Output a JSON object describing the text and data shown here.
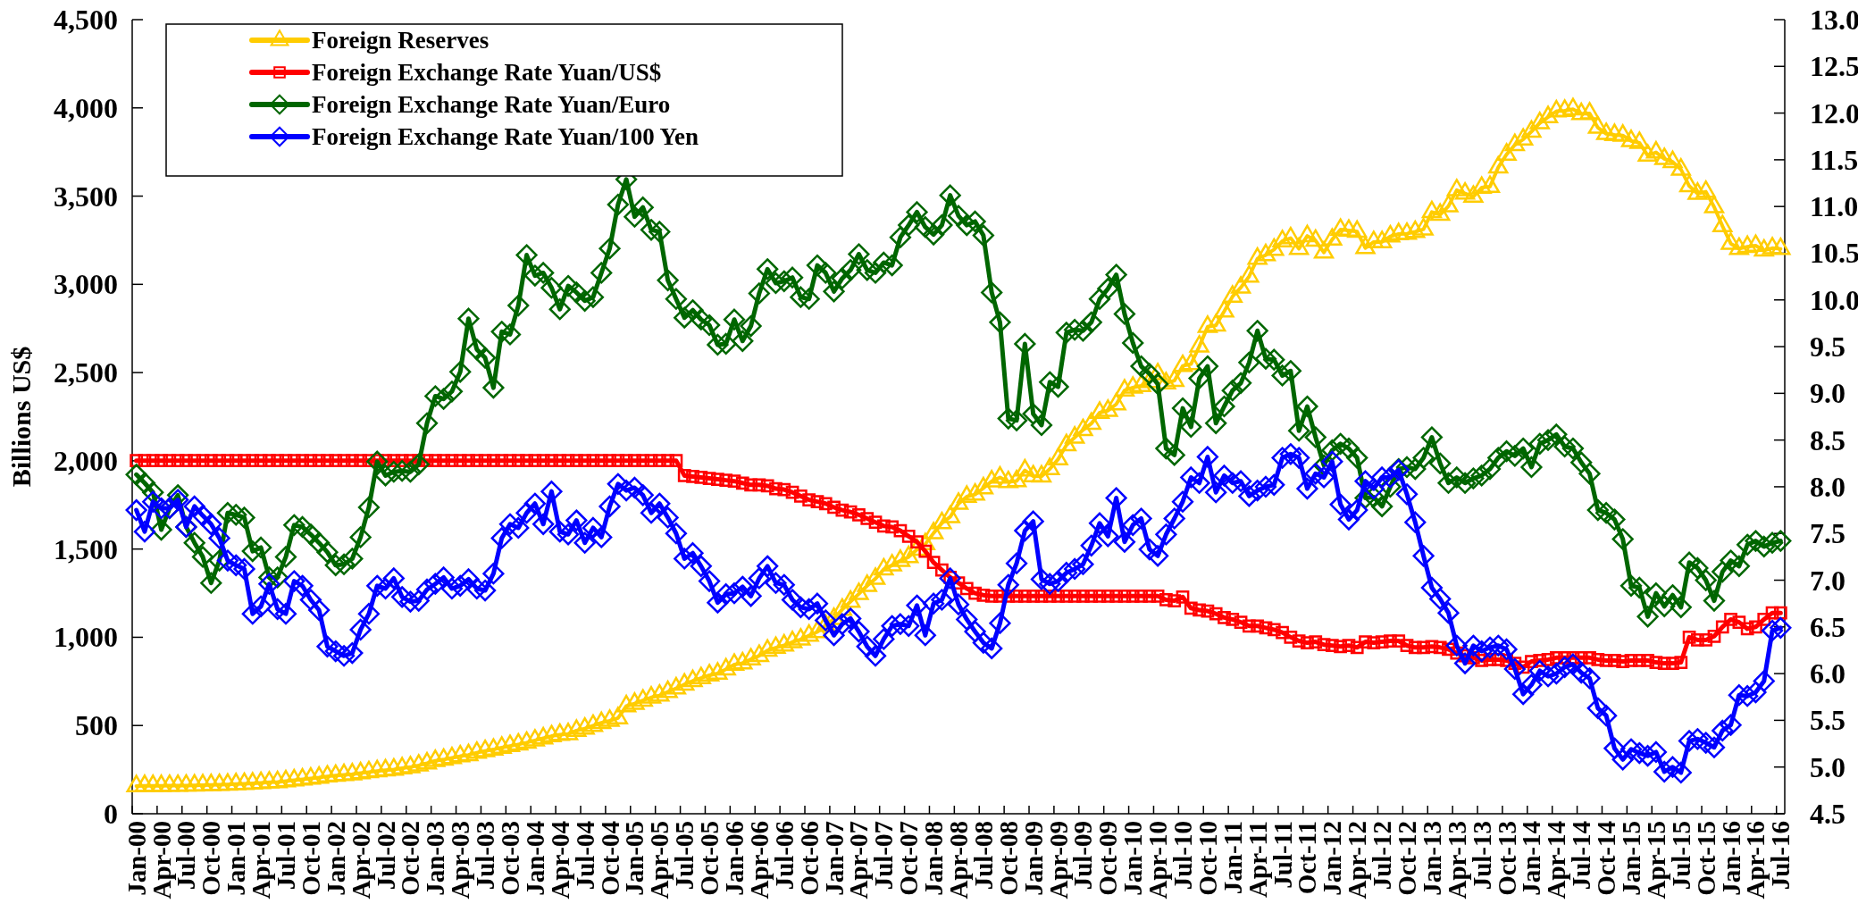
{
  "chart_data": {
    "type": "line",
    "ylabel": "Billions US$",
    "categories": [
      "Jan-00",
      null,
      null,
      "Apr-00",
      null,
      null,
      "Jul-00",
      null,
      null,
      "Oct-00",
      null,
      null,
      "Jan-01",
      null,
      null,
      "Apr-01",
      null,
      null,
      "Jul-01",
      null,
      null,
      "Oct-01",
      null,
      null,
      "Jan-02",
      null,
      null,
      "Apr-02",
      null,
      null,
      "Jul-02",
      null,
      null,
      "Oct-02",
      null,
      null,
      "Jan-03",
      null,
      null,
      "Apr-03",
      null,
      null,
      "Jul-03",
      null,
      null,
      "Oct-03",
      null,
      null,
      "Jan-04",
      null,
      null,
      "Apr-04",
      null,
      null,
      "Jul-04",
      null,
      null,
      "Oct-04",
      null,
      null,
      "Jan-05",
      null,
      null,
      "Apr-05",
      null,
      null,
      "Jul-05",
      null,
      null,
      "Oct-05",
      null,
      null,
      "Jan-06",
      null,
      null,
      "Apr-06",
      null,
      null,
      "Jul-06",
      null,
      null,
      "Oct-06",
      null,
      null,
      "Jan-07",
      null,
      null,
      "Apr-07",
      null,
      null,
      "Jul-07",
      null,
      null,
      "Oct-07",
      null,
      null,
      "Jan-08",
      null,
      null,
      "Apr-08",
      null,
      null,
      "Jul-08",
      null,
      null,
      "Oct-08",
      null,
      null,
      "Jan-09",
      null,
      null,
      "Apr-09",
      null,
      null,
      "Jul-09",
      null,
      null,
      "Oct-09",
      null,
      null,
      "Jan-10",
      null,
      null,
      "Apr-10",
      null,
      null,
      "Jul-10",
      null,
      null,
      "Oct-10",
      null,
      null,
      "Jan-11",
      null,
      null,
      "Apr-11",
      null,
      null,
      "Jul-11",
      null,
      null,
      "Oct-11",
      null,
      null,
      "Jan-12",
      null,
      null,
      "Apr-12",
      null,
      null,
      "Jul-12",
      null,
      null,
      "Oct-12",
      null,
      null,
      "Jan-13",
      null,
      null,
      "Apr-13",
      null,
      null,
      "Jul-13",
      null,
      null,
      "Oct-13",
      null,
      null,
      "Jan-14",
      null,
      null,
      "Apr-14",
      null,
      null,
      "Jul-14",
      null,
      null,
      "Oct-14",
      null,
      null,
      "Jan-15",
      null,
      null,
      "Apr-15",
      null,
      null,
      "Jul-15",
      null,
      null,
      "Oct-15",
      null,
      null,
      "Jan-16",
      null,
      null,
      "Apr-16",
      null,
      null,
      "Jul-16"
    ],
    "series": [
      {
        "name": "Foreign Reserves",
        "color": "#ffcc00",
        "marker": "triangle",
        "values": [
          157,
          158,
          158,
          158,
          159,
          159,
          160,
          161,
          162,
          163,
          164,
          166,
          168,
          170,
          172,
          175,
          178,
          180,
          185,
          190,
          195,
          200,
          205,
          212,
          216,
          220,
          224,
          230,
          236,
          242,
          247,
          251,
          258,
          264,
          274,
          286,
          300,
          307,
          316,
          326,
          333,
          346,
          356,
          364,
          375,
          384,
          393,
          403,
          416,
          428,
          440,
          448,
          452,
          471,
          483,
          499,
          515,
          527,
          542,
          610,
          624,
          642,
          659,
          670,
          691,
          711,
          733,
          753,
          769,
          785,
          795,
          819,
          845,
          853,
          875,
          895,
          925,
          941,
          954,
          973,
          988,
          1010,
          1030,
          1066,
          1105,
          1157,
          1202,
          1246,
          1292,
          1332,
          1385,
          1408,
          1434,
          1455,
          1497,
          1528,
          1590,
          1647,
          1682,
          1757,
          1797,
          1809,
          1845,
          1884,
          1906,
          1880,
          1885,
          1946,
          1913,
          1912,
          1954,
          2009,
          2089,
          2132,
          2175,
          2211,
          2273,
          2284,
          2321,
          2399,
          2415,
          2425,
          2447,
          2491,
          2440,
          2454,
          2538,
          2548,
          2648,
          2760,
          2768,
          2847,
          2931,
          2982,
          3045,
          3146,
          3166,
          3197,
          3245,
          3262,
          3202,
          3274,
          3248,
          3181,
          3254,
          3310,
          3305,
          3299,
          3206,
          3240,
          3240,
          3272,
          3285,
          3287,
          3298,
          3312,
          3410,
          3395,
          3443,
          3534,
          3515,
          3497,
          3548,
          3553,
          3663,
          3736,
          3790,
          3821,
          3866,
          3914,
          3948,
          3981,
          3984,
          3993,
          3966,
          3969,
          3888,
          3853,
          3847,
          3843,
          3813,
          3802,
          3730,
          3748,
          3711,
          3694,
          3651,
          3557,
          3514,
          3525,
          3438,
          3330,
          3231,
          3202,
          3213,
          3219,
          3192,
          3205,
          3201
        ]
      },
      {
        "name": "Foreign Exchange Rate Yuan/US$",
        "color": "#ff0000",
        "marker": "square",
        "axis": "y2",
        "values": [
          8.28,
          8.28,
          8.28,
          8.28,
          8.28,
          8.28,
          8.28,
          8.28,
          8.28,
          8.28,
          8.28,
          8.28,
          8.28,
          8.28,
          8.28,
          8.28,
          8.28,
          8.28,
          8.28,
          8.28,
          8.28,
          8.28,
          8.28,
          8.28,
          8.28,
          8.28,
          8.28,
          8.28,
          8.28,
          8.28,
          8.28,
          8.28,
          8.28,
          8.28,
          8.28,
          8.28,
          8.28,
          8.28,
          8.28,
          8.28,
          8.28,
          8.28,
          8.28,
          8.28,
          8.28,
          8.28,
          8.28,
          8.28,
          8.28,
          8.28,
          8.28,
          8.28,
          8.28,
          8.28,
          8.28,
          8.28,
          8.28,
          8.28,
          8.28,
          8.28,
          8.28,
          8.28,
          8.28,
          8.28,
          8.28,
          8.28,
          8.12,
          8.11,
          8.1,
          8.09,
          8.08,
          8.07,
          8.06,
          8.04,
          8.02,
          8.02,
          8.01,
          7.98,
          7.97,
          7.94,
          7.9,
          7.86,
          7.84,
          7.82,
          7.78,
          7.75,
          7.73,
          7.7,
          7.66,
          7.62,
          7.58,
          7.57,
          7.53,
          7.47,
          7.41,
          7.31,
          7.19,
          7.11,
          7.03,
          6.97,
          6.91,
          6.86,
          6.84,
          6.83,
          6.83,
          6.83,
          6.83,
          6.83,
          6.83,
          6.83,
          6.83,
          6.83,
          6.83,
          6.83,
          6.83,
          6.83,
          6.83,
          6.83,
          6.83,
          6.83,
          6.83,
          6.83,
          6.83,
          6.83,
          6.79,
          6.78,
          6.82,
          6.7,
          6.68,
          6.67,
          6.64,
          6.6,
          6.58,
          6.55,
          6.51,
          6.51,
          6.49,
          6.47,
          6.44,
          6.39,
          6.35,
          6.33,
          6.34,
          6.31,
          6.3,
          6.29,
          6.3,
          6.28,
          6.34,
          6.33,
          6.34,
          6.35,
          6.35,
          6.3,
          6.28,
          6.28,
          6.29,
          6.28,
          6.26,
          6.22,
          6.19,
          6.17,
          6.14,
          6.15,
          6.15,
          6.14,
          6.11,
          6.07,
          6.13,
          6.14,
          6.15,
          6.17,
          6.17,
          6.17,
          6.17,
          6.17,
          6.15,
          6.14,
          6.14,
          6.13,
          6.14,
          6.14,
          6.14,
          6.12,
          6.11,
          6.11,
          6.12,
          6.39,
          6.36,
          6.36,
          6.4,
          6.5,
          6.58,
          6.55,
          6.48,
          6.5,
          6.58,
          6.65,
          6.65
        ]
      },
      {
        "name": "Foreign Exchange Rate Yuan/Euro",
        "color": "#006600",
        "marker": "diamond",
        "axis": "y2",
        "values": [
          8.13,
          8.04,
          7.94,
          7.54,
          7.77,
          7.91,
          7.57,
          7.4,
          7.25,
          6.97,
          7.21,
          7.72,
          7.7,
          7.67,
          7.31,
          7.35,
          7.03,
          7.03,
          7.25,
          7.59,
          7.57,
          7.49,
          7.4,
          7.3,
          7.16,
          7.17,
          7.23,
          7.46,
          7.78,
          8.27,
          8.12,
          8.16,
          8.17,
          8.16,
          8.24,
          8.68,
          8.97,
          8.94,
          9.02,
          9.23,
          9.8,
          9.47,
          9.38,
          9.06,
          9.66,
          9.63,
          9.94,
          10.48,
          10.26,
          10.29,
          10.13,
          9.9,
          10.15,
          10.08,
          9.99,
          10.03,
          10.29,
          10.55,
          11.02,
          11.29,
          10.89,
          10.99,
          10.75,
          10.73,
          10.21,
          10.01,
          9.81,
          9.89,
          9.79,
          9.73,
          9.52,
          9.53,
          9.79,
          9.56,
          9.72,
          10.07,
          10.33,
          10.18,
          10.2,
          10.24,
          10.03,
          10.01,
          10.37,
          10.29,
          10.09,
          10.23,
          10.32,
          10.49,
          10.32,
          10.29,
          10.4,
          10.37,
          10.67,
          10.8,
          10.94,
          10.78,
          10.7,
          10.8,
          11.12,
          10.9,
          10.8,
          10.84,
          10.69,
          10.08,
          9.76,
          8.73,
          8.71,
          9.53,
          8.78,
          8.66,
          9.12,
          9.07,
          9.65,
          9.68,
          9.67,
          9.76,
          10.01,
          10.12,
          10.27,
          9.85,
          9.54,
          9.29,
          9.21,
          9.1,
          8.41,
          8.34,
          8.84,
          8.64,
          9.16,
          9.29,
          8.68,
          8.86,
          9.03,
          9.11,
          9.33,
          9.67,
          9.37,
          9.36,
          9.19,
          9.24,
          8.6,
          8.86,
          8.53,
          8.23,
          8.39,
          8.46,
          8.41,
          8.31,
          7.88,
          7.89,
          7.79,
          8.0,
          8.19,
          8.21,
          8.19,
          8.31,
          8.53,
          8.25,
          8.04,
          8.1,
          8.04,
          8.09,
          8.12,
          8.19,
          8.31,
          8.38,
          8.33,
          8.41,
          8.21,
          8.46,
          8.5,
          8.56,
          8.43,
          8.41,
          8.26,
          8.14,
          7.75,
          7.72,
          7.65,
          7.44,
          6.94,
          6.92,
          6.61,
          6.86,
          6.72,
          6.84,
          6.71,
          7.19,
          7.13,
          7.0,
          6.78,
          7.09,
          7.21,
          7.15,
          7.38,
          7.42,
          7.36,
          7.4,
          7.42
        ]
      },
      {
        "name": "Foreign Exchange Rate Yuan/100 Yen",
        "color": "#0000ff",
        "marker": "diamond",
        "axis": "y2",
        "values": [
          7.75,
          7.52,
          7.84,
          7.77,
          7.77,
          7.86,
          7.57,
          7.79,
          7.69,
          7.6,
          7.45,
          7.21,
          7.16,
          7.12,
          6.64,
          6.72,
          6.96,
          6.69,
          6.64,
          6.99,
          6.94,
          6.79,
          6.68,
          6.29,
          6.24,
          6.19,
          6.22,
          6.47,
          6.64,
          6.94,
          6.91,
          7.02,
          6.82,
          6.77,
          6.78,
          6.9,
          6.96,
          7.03,
          6.91,
          6.94,
          7.01,
          6.91,
          6.89,
          7.07,
          7.45,
          7.6,
          7.56,
          7.72,
          7.82,
          7.6,
          7.95,
          7.52,
          7.49,
          7.64,
          7.4,
          7.56,
          7.46,
          7.79,
          8.03,
          7.96,
          7.99,
          7.91,
          7.72,
          7.82,
          7.67,
          7.5,
          7.23,
          7.29,
          7.15,
          6.99,
          6.76,
          6.85,
          6.86,
          6.93,
          6.83,
          7.02,
          7.15,
          6.97,
          6.95,
          6.79,
          6.71,
          6.69,
          6.75,
          6.57,
          6.41,
          6.53,
          6.59,
          6.45,
          6.29,
          6.19,
          6.37,
          6.51,
          6.53,
          6.51,
          6.73,
          6.41,
          6.75,
          6.79,
          7.02,
          6.74,
          6.58,
          6.45,
          6.33,
          6.27,
          6.54,
          6.95,
          7.18,
          7.53,
          7.63,
          7.01,
          6.96,
          6.99,
          7.08,
          7.12,
          7.17,
          7.37,
          7.61,
          7.47,
          7.88,
          7.41,
          7.59,
          7.66,
          7.33,
          7.26,
          7.49,
          7.66,
          7.84,
          8.1,
          8.04,
          8.32,
          7.94,
          8.12,
          8.04,
          8.06,
          7.9,
          7.96,
          8.0,
          8.02,
          8.31,
          8.35,
          8.31,
          7.98,
          8.14,
          8.1,
          8.27,
          7.81,
          7.65,
          7.75,
          8.06,
          7.98,
          8.1,
          8.1,
          8.18,
          7.92,
          7.62,
          7.26,
          6.92,
          6.8,
          6.65,
          6.3,
          6.11,
          6.3,
          6.24,
          6.28,
          6.3,
          6.26,
          6.05,
          5.78,
          5.88,
          6.03,
          5.97,
          6.0,
          6.07,
          6.1,
          6.01,
          5.95,
          5.63,
          5.55,
          5.2,
          5.08,
          5.19,
          5.15,
          5.12,
          5.16,
          4.95,
          5.0,
          4.94,
          5.28,
          5.3,
          5.26,
          5.21,
          5.39,
          5.45,
          5.77,
          5.76,
          5.8,
          5.92,
          6.46,
          6.49
        ]
      }
    ],
    "ylim": [
      0,
      4500
    ],
    "yticks": [
      0,
      500,
      {
        "value": 1000,
        "label": "1,000"
      },
      {
        "value": 1500,
        "label": "1,500"
      },
      {
        "value": 2000,
        "label": "2,000"
      },
      {
        "value": 2500,
        "label": "2,500"
      },
      {
        "value": 3000,
        "label": "3,000"
      },
      {
        "value": 3500,
        "label": "3,500"
      },
      {
        "value": 4000,
        "label": "4,000"
      },
      {
        "value": 4500,
        "label": "4,500"
      }
    ],
    "y2lim": [
      4.5,
      13
    ],
    "y2ticks": [
      4.5,
      {
        "value": 5,
        "label": "5.0"
      },
      5.5,
      {
        "value": 6,
        "label": "6.0"
      },
      6.5,
      {
        "value": 7,
        "label": "7.0"
      },
      7.5,
      {
        "value": 8,
        "label": "8.0"
      },
      8.5,
      {
        "value": 9,
        "label": "9.0"
      },
      9.5,
      {
        "value": 10,
        "label": "10.0"
      },
      10.5,
      {
        "value": 11,
        "label": "11.0"
      },
      11.5,
      {
        "value": 12,
        "label": "12.0"
      },
      12.5,
      {
        "value": 13,
        "label": "13.0"
      }
    ],
    "legend": "top left",
    "grid": false
  }
}
